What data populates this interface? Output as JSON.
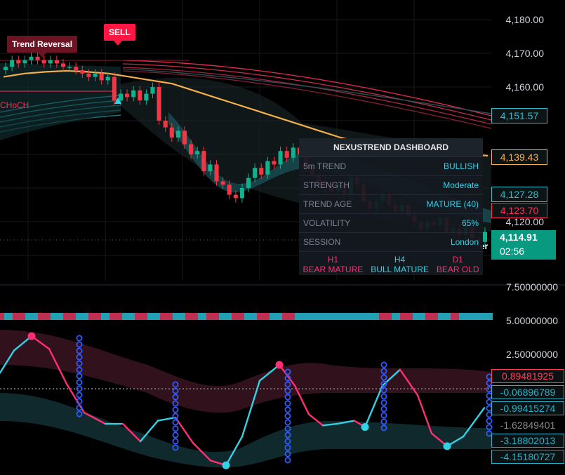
{
  "chart_data": [
    {
      "type": "candlestick",
      "price_axis": {
        "ticks": [
          "4,180.00",
          "4,170.00",
          "4,160.00",
          "4,120.00"
        ],
        "range": [
          4106,
          4184
        ]
      },
      "price_tags": [
        {
          "label": "4,151.57",
          "color": "#2bbfcf"
        },
        {
          "label": "4,139.43",
          "color": "#f5b04b"
        },
        {
          "label": "4,127.28",
          "color": "#2bbfcf"
        },
        {
          "label": "4,123.70",
          "color": "#ff2e5a"
        }
      ],
      "last_price": {
        "price": "4,114.91",
        "countdown": "02:56",
        "color": "#089981"
      },
      "candles_close": [
        4166,
        4168,
        4167,
        4168,
        4169,
        4168,
        4167,
        4168,
        4167,
        4166,
        4166,
        4165,
        4164,
        4163,
        4164,
        4162,
        4163,
        4156,
        4158,
        4157,
        4159,
        4156,
        4158,
        4160,
        4150,
        4148,
        4145,
        4147,
        4143,
        4140,
        4141,
        4135,
        4137,
        4132,
        4131,
        4128,
        4127,
        4130,
        4133,
        4136,
        4134,
        4138,
        4137,
        4141,
        4139,
        4142,
        4140,
        4136,
        4134,
        4132,
        4130,
        4129,
        4131,
        4128,
        4133,
        4131,
        4126,
        4124,
        4126,
        4128,
        4125,
        4123,
        4125,
        4122,
        4120,
        4118,
        4120,
        4119,
        4121,
        4117,
        4118,
        4116,
        4120,
        4115,
        4114,
        4117
      ],
      "moving_average": {
        "color": "#f5b04b",
        "values": [
          4163,
          4164,
          4164.5,
          4164.8,
          4164.5,
          4164,
          4163,
          4162,
          4161,
          4159,
          4157,
          4155,
          4153,
          4151,
          4149,
          4147,
          4145,
          4143.5,
          4142.5,
          4141.8,
          4141.2,
          4140.5,
          4140,
          4139.6
        ]
      },
      "annotations": [
        {
          "label": "Trend Reversal",
          "color": "#8b1a2e"
        },
        {
          "label": "SELL",
          "color": "#ff1744"
        },
        {
          "label": "CHoCH",
          "color": "#ff2e5a"
        },
        {
          "label": "er",
          "color": "#ffffff"
        }
      ]
    },
    {
      "type": "line",
      "title": "NEXUSTREND DASHBOARD",
      "rows": [
        {
          "label": "5m TREND",
          "value": "BULLISH"
        },
        {
          "label": "STRENGTH",
          "value": "Moderate"
        },
        {
          "label": "TREND AGE",
          "value": "MATURE (40)"
        },
        {
          "label": "VOLATILITY",
          "value": "65%"
        },
        {
          "label": "SESSION",
          "value": "London"
        }
      ],
      "timeframes": [
        {
          "tf": "H1",
          "state": "BEAR MATURE",
          "color": "#ff2e72"
        },
        {
          "tf": "H4",
          "state": "BULL MATURE",
          "color": "#33d1e6"
        },
        {
          "tf": "D1",
          "state": "BEAR OLD",
          "color": "#ff2e72"
        }
      ]
    },
    {
      "type": "line",
      "osc_axis": {
        "ticks": [
          "7.50000000",
          "5.00000000",
          "2.50000000"
        ],
        "range": [
          -5.2,
          5.6
        ]
      },
      "osc_tags": [
        {
          "label": "0.89481925",
          "color": "#ff3d5a"
        },
        {
          "label": "-0.06896789",
          "color": "#26b2c9"
        },
        {
          "label": "-0.99415274",
          "color": "#26b2c9"
        },
        {
          "label": "-1.62849401",
          "color": "#888888"
        },
        {
          "label": "-3.18802013",
          "color": "#26b2c9"
        },
        {
          "label": "-4.15180727",
          "color": "#26b2c9"
        }
      ],
      "oscillator": {
        "x": [
          0,
          20,
          45,
          70,
          95,
          120,
          150,
          175,
          200,
          225,
          250,
          275,
          300,
          322,
          345,
          370,
          398,
          420,
          440,
          460,
          480,
          505,
          520,
          545,
          570,
          595,
          615,
          637,
          660,
          690
        ],
        "y": [
          1.0,
          2.4,
          3.3,
          2.5,
          0.3,
          -1.5,
          -2.2,
          -2.2,
          -3.3,
          -2.0,
          -1.8,
          -3.4,
          -4.5,
          -4.8,
          -3.0,
          0.5,
          1.5,
          0.2,
          -1.6,
          -2.3,
          -2.2,
          -2.0,
          -2.4,
          0.2,
          1.2,
          -0.4,
          -2.8,
          -3.6,
          -3.0,
          -1.2
        ]
      }
    }
  ]
}
